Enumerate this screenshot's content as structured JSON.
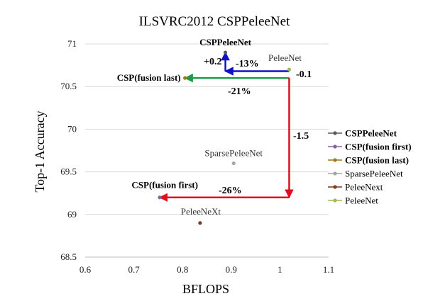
{
  "chart_data": {
    "type": "scatter",
    "title": "ILSVRC2012 CSPPeleeNet",
    "xlabel": "BFLOPS",
    "ylabel": "Top-1 Accuracy",
    "xlim": [
      0.6,
      1.1
    ],
    "ylim": [
      68.5,
      71
    ],
    "xticks": [
      "0.6",
      "0.7",
      "0.8",
      "0.9",
      "1",
      "1.1"
    ],
    "yticks": [
      "68.5",
      "69",
      "69.5",
      "70",
      "70.5",
      "71"
    ],
    "grid": "horizontal",
    "legend_position": "right",
    "series": [
      {
        "name": "CSPPeleeNet",
        "x": 0.888,
        "y": 70.9,
        "label": "CSPPeleeNet",
        "label_bold": true,
        "color": "#5a5a5a"
      },
      {
        "name": "CSP(fusion first)",
        "x": 0.753,
        "y": 69.2,
        "label": "CSP(fusion first)",
        "label_bold": true,
        "color": "#8064a2"
      },
      {
        "name": "CSP(fusion last)",
        "x": 0.805,
        "y": 70.6,
        "label": "CSP(fusion last)",
        "label_bold": true,
        "color": "#9c7a1c"
      },
      {
        "name": "SparsePeleeNet",
        "x": 0.905,
        "y": 69.6,
        "label": "SparsePeleeNet",
        "label_bold": false,
        "color": "#a5a5a5"
      },
      {
        "name": "PeleeNext",
        "x": 0.836,
        "y": 68.9,
        "label": "PeleeNeXt",
        "label_bold": false,
        "color": "#7a3a1c"
      },
      {
        "name": "PeleeNet",
        "x": 1.019,
        "y": 70.7,
        "label": "PeleeNet",
        "label_bold": false,
        "color": "#9bbb59"
      }
    ],
    "annotations": [
      {
        "text": "+0.2",
        "color": "#1010c8"
      },
      {
        "text": "-13%",
        "color": "#1010c8"
      },
      {
        "text": "-0.1",
        "color": "#1e9a4a"
      },
      {
        "text": "-21%",
        "color": "#1e9a4a"
      },
      {
        "text": "-1.5",
        "color": "#e0101a"
      },
      {
        "text": "-26%",
        "color": "#e0101a"
      }
    ],
    "arrows": [
      {
        "from": [
          0.888,
          70.68
        ],
        "to": [
          0.888,
          70.9
        ],
        "color": "#1010c8"
      },
      {
        "from": [
          1.019,
          70.68
        ],
        "to": [
          0.888,
          70.68
        ],
        "color": "#1010c8"
      },
      {
        "from": [
          1.019,
          70.6
        ],
        "to": [
          0.805,
          70.6
        ],
        "color": "#1e9a4a"
      },
      {
        "from": [
          1.019,
          70.6
        ],
        "to": [
          1.019,
          69.2
        ],
        "color": "#e0101a"
      },
      {
        "from": [
          1.019,
          69.2
        ],
        "to": [
          0.753,
          69.2
        ],
        "color": "#e0101a"
      }
    ]
  }
}
